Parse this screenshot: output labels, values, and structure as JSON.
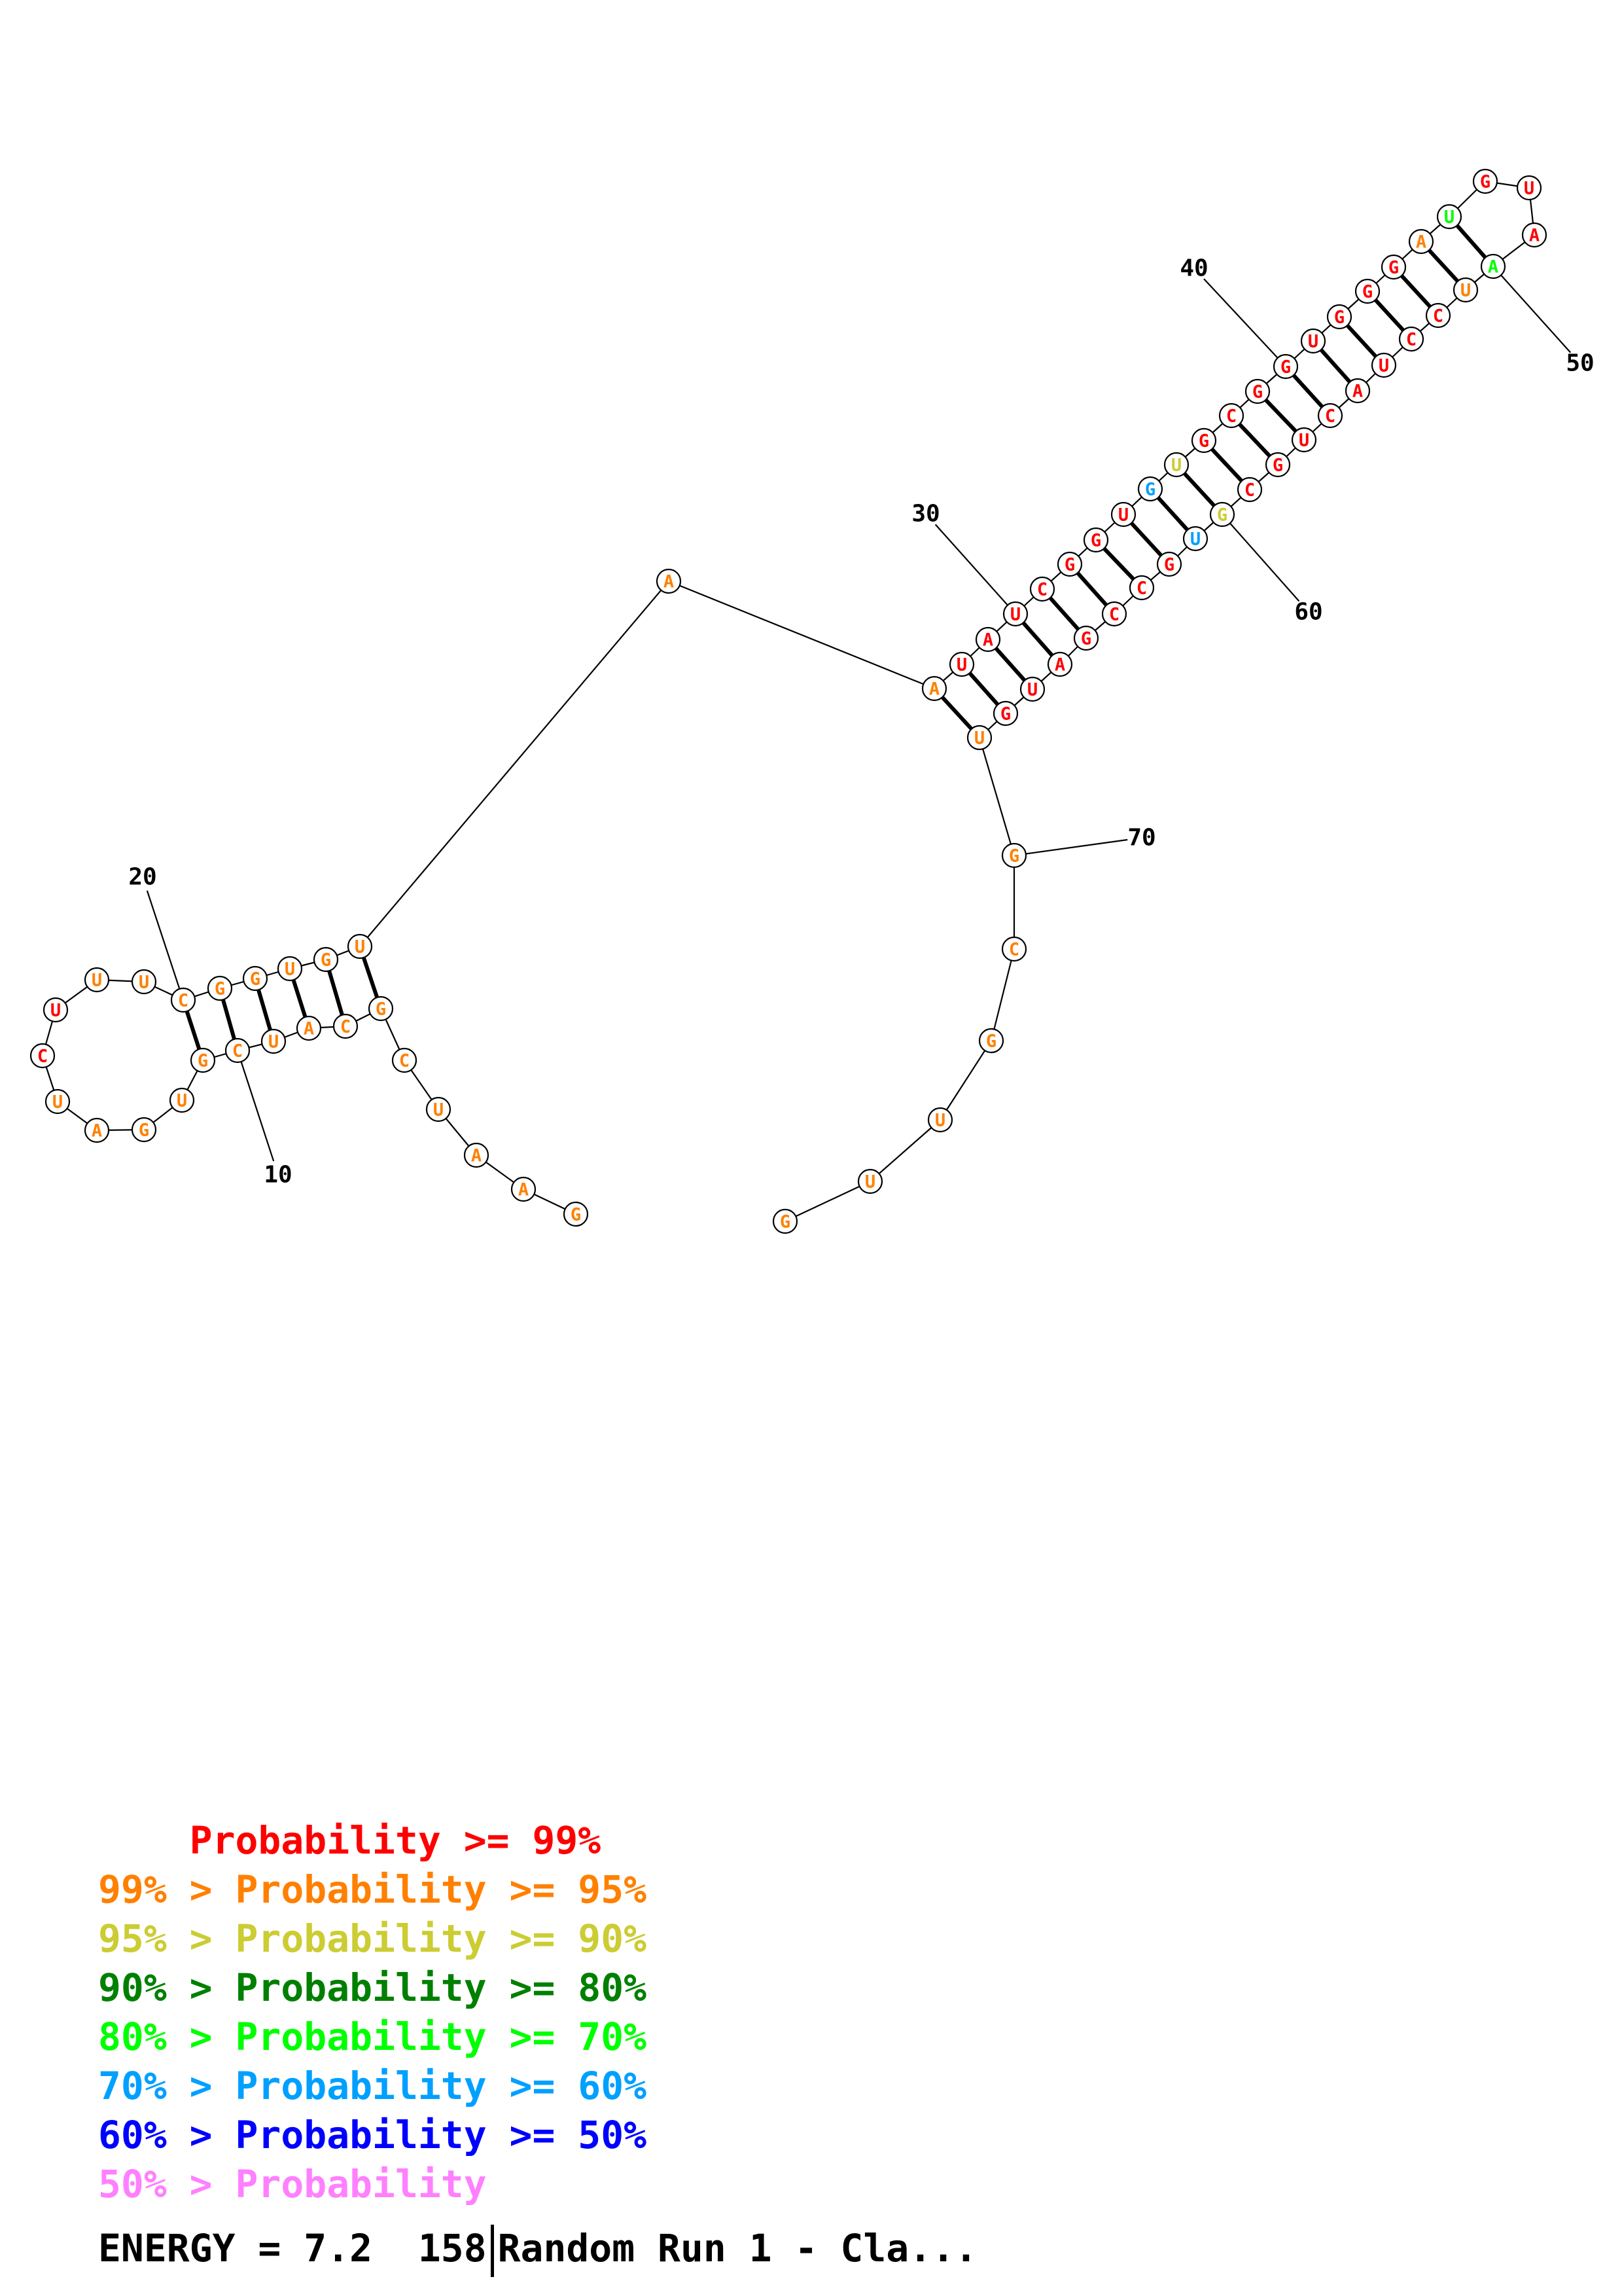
{
  "colors": {
    "p99": "#ff0000",
    "p95": "#ff8000",
    "p90": "#cccc33",
    "p80": "#008000",
    "p70": "#00ff00",
    "p60": "#00a0ff",
    "p50": "#0000ff",
    "lt50": "#ff80ff"
  },
  "structure": {
    "nucleotides": [
      {
        "n": 1,
        "base": "G",
        "c": "p95"
      },
      {
        "n": 2,
        "base": "A",
        "c": "p95"
      },
      {
        "n": 3,
        "base": "A",
        "c": "p95"
      },
      {
        "n": 4,
        "base": "U",
        "c": "p95"
      },
      {
        "n": 5,
        "base": "C",
        "c": "p95"
      },
      {
        "n": 6,
        "base": "G",
        "c": "p95"
      },
      {
        "n": 7,
        "base": "C",
        "c": "p95"
      },
      {
        "n": 8,
        "base": "A",
        "c": "p95"
      },
      {
        "n": 9,
        "base": "U",
        "c": "p95"
      },
      {
        "n": 10,
        "base": "C",
        "c": "p95"
      },
      {
        "n": 11,
        "base": "G",
        "c": "p95"
      },
      {
        "n": 12,
        "base": "U",
        "c": "p95"
      },
      {
        "n": 13,
        "base": "G",
        "c": "p95"
      },
      {
        "n": 14,
        "base": "A",
        "c": "p95"
      },
      {
        "n": 15,
        "base": "U",
        "c": "p95"
      },
      {
        "n": 16,
        "base": "C",
        "c": "p99"
      },
      {
        "n": 17,
        "base": "U",
        "c": "p99"
      },
      {
        "n": 18,
        "base": "U",
        "c": "p95"
      },
      {
        "n": 19,
        "base": "U",
        "c": "p95"
      },
      {
        "n": 20,
        "base": "C",
        "c": "p95"
      },
      {
        "n": 21,
        "base": "G",
        "c": "p95"
      },
      {
        "n": 22,
        "base": "G",
        "c": "p95"
      },
      {
        "n": 23,
        "base": "U",
        "c": "p95"
      },
      {
        "n": 24,
        "base": "G",
        "c": "p95"
      },
      {
        "n": 25,
        "base": "U",
        "c": "p95"
      },
      {
        "n": 26,
        "base": "A",
        "c": "p95"
      },
      {
        "n": 27,
        "base": "A",
        "c": "p95"
      },
      {
        "n": 28,
        "base": "U",
        "c": "p99"
      },
      {
        "n": 29,
        "base": "A",
        "c": "p99"
      },
      {
        "n": 30,
        "base": "U",
        "c": "p99"
      },
      {
        "n": 31,
        "base": "C",
        "c": "p99"
      },
      {
        "n": 32,
        "base": "G",
        "c": "p99"
      },
      {
        "n": 33,
        "base": "G",
        "c": "p99"
      },
      {
        "n": 34,
        "base": "U",
        "c": "p99"
      },
      {
        "n": 35,
        "base": "G",
        "c": "p60"
      },
      {
        "n": 36,
        "base": "U",
        "c": "p90"
      },
      {
        "n": 37,
        "base": "G",
        "c": "p99"
      },
      {
        "n": 38,
        "base": "C",
        "c": "p99"
      },
      {
        "n": 39,
        "base": "G",
        "c": "p99"
      },
      {
        "n": 40,
        "base": "G",
        "c": "p99"
      },
      {
        "n": 41,
        "base": "U",
        "c": "p99"
      },
      {
        "n": 42,
        "base": "G",
        "c": "p99"
      },
      {
        "n": 43,
        "base": "G",
        "c": "p99"
      },
      {
        "n": 44,
        "base": "G",
        "c": "p99"
      },
      {
        "n": 45,
        "base": "A",
        "c": "p95"
      },
      {
        "n": 46,
        "base": "U",
        "c": "p70"
      },
      {
        "n": 47,
        "base": "G",
        "c": "p99"
      },
      {
        "n": 48,
        "base": "U",
        "c": "p99"
      },
      {
        "n": 49,
        "base": "A",
        "c": "p99"
      },
      {
        "n": 50,
        "base": "A",
        "c": "p70"
      },
      {
        "n": 51,
        "base": "U",
        "c": "p95"
      },
      {
        "n": 52,
        "base": "C",
        "c": "p99"
      },
      {
        "n": 53,
        "base": "C",
        "c": "p99"
      },
      {
        "n": 54,
        "base": "U",
        "c": "p99"
      },
      {
        "n": 55,
        "base": "A",
        "c": "p99"
      },
      {
        "n": 56,
        "base": "C",
        "c": "p99"
      },
      {
        "n": 57,
        "base": "U",
        "c": "p99"
      },
      {
        "n": 58,
        "base": "G",
        "c": "p99"
      },
      {
        "n": 59,
        "base": "C",
        "c": "p99"
      },
      {
        "n": 60,
        "base": "G",
        "c": "p90"
      },
      {
        "n": 61,
        "base": "U",
        "c": "p60"
      },
      {
        "n": 62,
        "base": "G",
        "c": "p99"
      },
      {
        "n": 63,
        "base": "C",
        "c": "p99"
      },
      {
        "n": 64,
        "base": "C",
        "c": "p99"
      },
      {
        "n": 65,
        "base": "G",
        "c": "p99"
      },
      {
        "n": 66,
        "base": "A",
        "c": "p99"
      },
      {
        "n": 67,
        "base": "U",
        "c": "p99"
      },
      {
        "n": 68,
        "base": "G",
        "c": "p99"
      },
      {
        "n": 69,
        "base": "U",
        "c": "p95"
      },
      {
        "n": 70,
        "base": "G",
        "c": "p95"
      },
      {
        "n": 71,
        "base": "C",
        "c": "p95"
      },
      {
        "n": 72,
        "base": "G",
        "c": "p95"
      },
      {
        "n": 73,
        "base": "U",
        "c": "p95"
      },
      {
        "n": 74,
        "base": "U",
        "c": "p95"
      },
      {
        "n": 75,
        "base": "G",
        "c": "p95"
      }
    ],
    "pairs": [
      [
        6,
        25
      ],
      [
        7,
        24
      ],
      [
        8,
        23
      ],
      [
        9,
        22
      ],
      [
        10,
        21
      ],
      [
        11,
        20
      ],
      [
        27,
        69
      ],
      [
        28,
        68
      ],
      [
        29,
        67
      ],
      [
        30,
        66
      ],
      [
        31,
        65
      ],
      [
        32,
        64
      ],
      [
        33,
        63
      ],
      [
        34,
        62
      ],
      [
        35,
        61
      ],
      [
        36,
        60
      ],
      [
        37,
        59
      ],
      [
        38,
        58
      ],
      [
        39,
        57
      ],
      [
        40,
        56
      ],
      [
        41,
        55
      ],
      [
        42,
        54
      ],
      [
        43,
        53
      ],
      [
        44,
        52
      ],
      [
        45,
        51
      ],
      [
        46,
        50
      ]
    ],
    "ticks": [
      {
        "n": 10,
        "label": "10"
      },
      {
        "n": 20,
        "label": "20"
      },
      {
        "n": 30,
        "label": "30"
      },
      {
        "n": 40,
        "label": "40"
      },
      {
        "n": 50,
        "label": "50"
      },
      {
        "n": 60,
        "label": "60"
      },
      {
        "n": 70,
        "label": "70"
      }
    ]
  },
  "legend": [
    {
      "prefix": "    ",
      "text": "Probability >= 99%",
      "color": "#ff0000"
    },
    {
      "prefix": "",
      "text": "99% > Probability >= 95%",
      "color": "#ff8000"
    },
    {
      "prefix": "",
      "text": "95% > Probability >= 90%",
      "color": "#cccc33"
    },
    {
      "prefix": "",
      "text": "90% > Probability >= 80%",
      "color": "#008000"
    },
    {
      "prefix": "",
      "text": "80% > Probability >= 70%",
      "color": "#00ff00"
    },
    {
      "prefix": "",
      "text": "70% > Probability >= 60%",
      "color": "#00a0ff"
    },
    {
      "prefix": "",
      "text": "60% > Probability >= 50%",
      "color": "#0000ff"
    },
    {
      "prefix": "",
      "text": "50% > Probability",
      "color": "#ff80ff"
    }
  ],
  "footer": {
    "energy": "ENERGY = 7.2  158",
    "title": "Random Run 1 - Cla..."
  }
}
